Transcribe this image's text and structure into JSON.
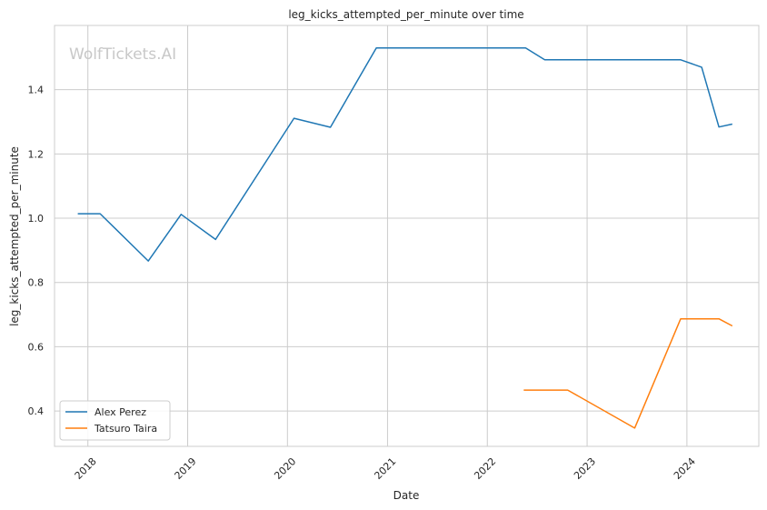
{
  "chart_data": {
    "type": "line",
    "title": "leg_kicks_attempted_per_minute over time",
    "xlabel": "Date",
    "ylabel": "leg_kicks_attempted_per_minute",
    "watermark": "WolfTickets.AI",
    "x_ticks": [
      "2018",
      "2019",
      "2020",
      "2021",
      "2022",
      "2023",
      "2024"
    ],
    "y_ticks": [
      "0.4",
      "0.6",
      "0.8",
      "1.0",
      "1.2",
      "1.4"
    ],
    "xlim": [
      "2017-09-01",
      "2024-09-20"
    ],
    "ylim": [
      0.29,
      1.6
    ],
    "grid": true,
    "legend_position": "lower-left",
    "series": [
      {
        "name": "Alex Perez",
        "color": "#1f77b4",
        "points": [
          [
            "2017-11-25",
            1.014
          ],
          [
            "2018-02-15",
            1.014
          ],
          [
            "2018-08-10",
            0.867
          ],
          [
            "2018-12-08",
            1.012
          ],
          [
            "2019-04-13",
            0.934
          ],
          [
            "2020-01-25",
            1.311
          ],
          [
            "2020-06-06",
            1.283
          ],
          [
            "2020-11-21",
            1.53
          ],
          [
            "2021-06-12",
            1.53
          ],
          [
            "2022-01-15",
            1.53
          ],
          [
            "2022-05-21",
            1.53
          ],
          [
            "2022-07-30",
            1.493
          ],
          [
            "2023-02-04",
            1.493
          ],
          [
            "2023-07-29",
            1.493
          ],
          [
            "2023-12-09",
            1.493
          ],
          [
            "2024-02-24",
            1.47
          ],
          [
            "2024-04-27",
            1.284
          ],
          [
            "2024-06-15",
            1.293
          ]
        ]
      },
      {
        "name": "Tatsuro Taira",
        "color": "#ff7f0e",
        "points": [
          [
            "2022-05-14",
            0.465
          ],
          [
            "2022-10-22",
            0.465
          ],
          [
            "2023-06-24",
            0.347
          ],
          [
            "2023-12-09",
            0.687
          ],
          [
            "2024-04-27",
            0.687
          ],
          [
            "2024-06-15",
            0.665
          ]
        ]
      }
    ]
  }
}
